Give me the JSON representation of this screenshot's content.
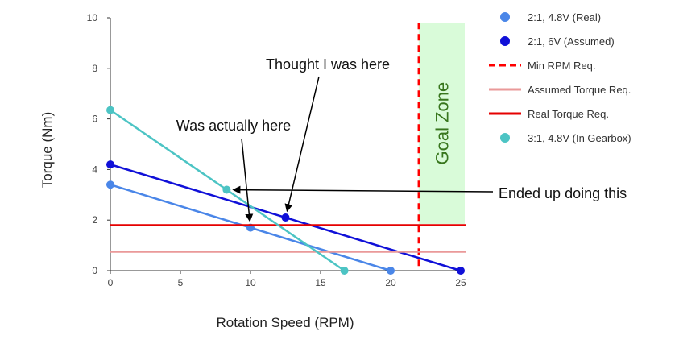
{
  "chart_data": {
    "type": "line",
    "title": "",
    "xlabel": "Rotation Speed (RPM)",
    "ylabel": "Torque (Nm)",
    "xlim": [
      0,
      25
    ],
    "ylim": [
      0,
      10
    ],
    "x_ticks": [
      "0",
      "5",
      "10",
      "15",
      "20",
      "25"
    ],
    "y_ticks": [
      "0",
      "2",
      "4",
      "6",
      "8",
      "10"
    ],
    "grid": false,
    "legend_position": "right",
    "series": [
      {
        "name": "2:1, 4.8V (Real)",
        "color": "#4a86e8",
        "kind": "line-points",
        "points": [
          [
            0,
            3.4
          ],
          [
            10,
            1.7
          ],
          [
            20,
            0
          ]
        ]
      },
      {
        "name": "2:1, 6V (Assumed)",
        "color": "#1010d8",
        "kind": "line-points",
        "points": [
          [
            0,
            4.2
          ],
          [
            12.5,
            2.1
          ],
          [
            25,
            0
          ]
        ]
      },
      {
        "name": "Min RPM Req.",
        "color": "#ff0000",
        "kind": "vertical-dashed",
        "x": 22
      },
      {
        "name": "Assumed Torque Req.",
        "color": "#ea9999",
        "kind": "horizontal",
        "y": 0.75
      },
      {
        "name": "Real Torque Req.",
        "color": "#e50000",
        "kind": "horizontal",
        "y": 1.8
      },
      {
        "name": "3:1, 4.8V (In Gearbox)",
        "color": "#4cc4c4",
        "kind": "line-points",
        "points": [
          [
            0,
            6.35
          ],
          [
            8.3,
            3.2
          ],
          [
            16.7,
            0
          ]
        ]
      }
    ],
    "goal_zone": {
      "label": "Goal Zone",
      "x_range": [
        22,
        25
      ],
      "y_range": [
        0,
        9.8
      ],
      "fill": "#d9fbd9",
      "text_color": "#38761d"
    },
    "annotations": [
      {
        "text": "Thought I was here",
        "target": [
          12.5,
          2.1
        ]
      },
      {
        "text": "Was actually here",
        "target": [
          10,
          1.7
        ]
      },
      {
        "text": "Ended up doing this",
        "target": [
          8.3,
          3.2
        ]
      }
    ]
  }
}
